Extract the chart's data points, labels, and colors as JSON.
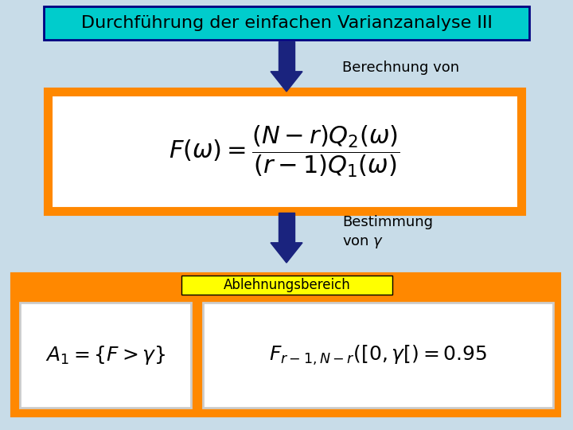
{
  "title": "Durchführung der einfachen Varianzanalyse III",
  "title_bg": "#00CCCC",
  "title_border": "#000080",
  "bg_color": "#C8DCE8",
  "arrow_color": "#1A237E",
  "text_berechnung": "Berechnung von",
  "text_bestimmung": "Bestimmung\nvon $\\gamma$",
  "formula_box_border": "#FF8800",
  "formula_box_bg": "#FFFFFF",
  "formula_main": "$F(\\omega) = \\dfrac{(N-r)Q_2(\\omega)}{(r-1)Q_1(\\omega)}$",
  "bottom_box_bg": "#FF8800",
  "bottom_box_border": "#FF8800",
  "ablehnung_label": "Ablehnungsbereich",
  "ablehnung_label_bg": "#FFFF00",
  "formula_left": "$A_1 = \\{F > \\gamma\\}$",
  "formula_right": "$F_{r-1,N-r}([0, \\gamma[) = 0.95$",
  "formula_small_box_bg": "#FFFFFF",
  "formula_small_box_border": "#CCCCCC"
}
